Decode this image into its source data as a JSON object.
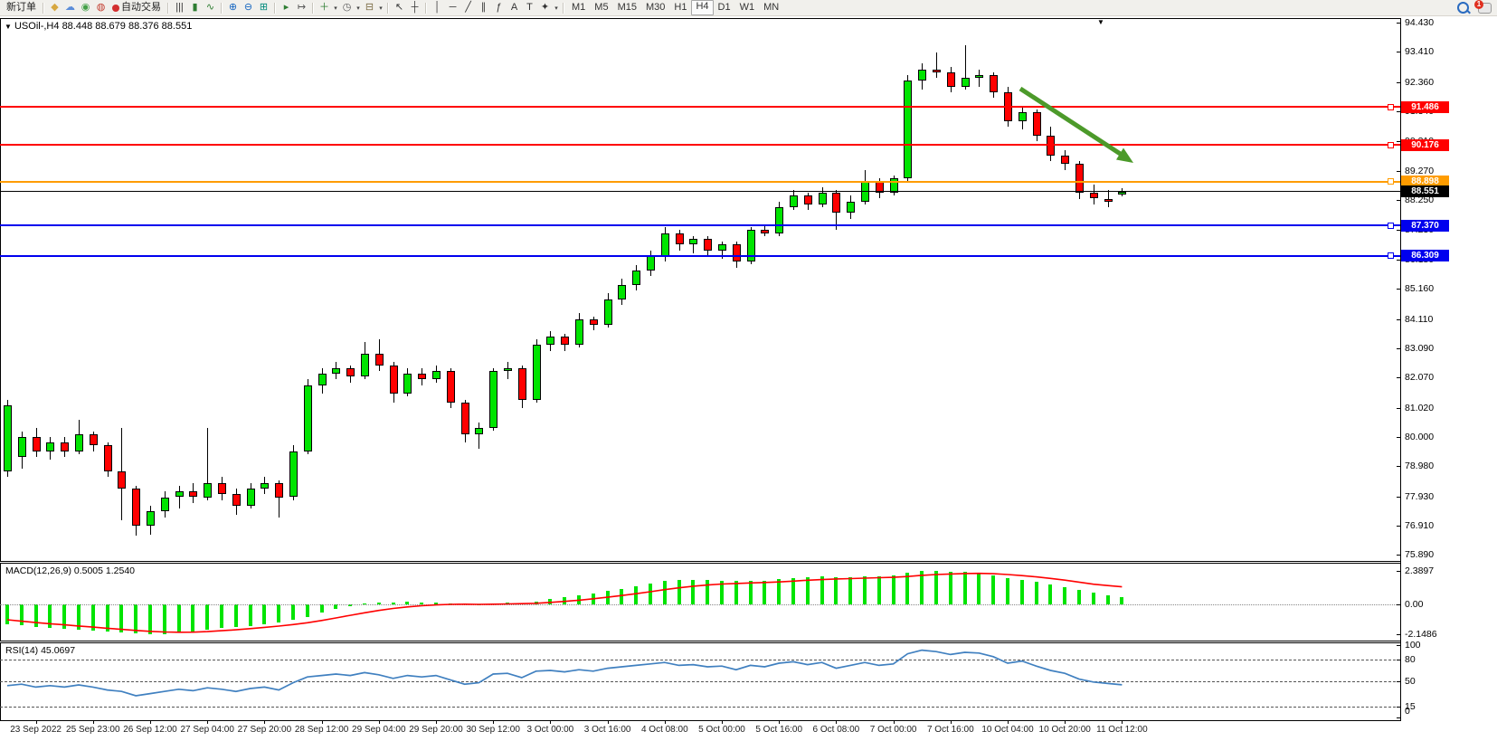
{
  "toolbar": {
    "new_order_label": "新订单",
    "auto_trading_label": "自动交易",
    "timeframes": [
      "M1",
      "M5",
      "M15",
      "M30",
      "H1",
      "H4",
      "D1",
      "W1",
      "MN"
    ],
    "active_timeframe": "H4",
    "notification_badge": "1",
    "items": [
      {
        "t": "btn",
        "name": "new-order-button",
        "label": "新订单"
      },
      {
        "t": "sep"
      },
      {
        "t": "icon",
        "name": "market-watch-icon",
        "g": "◆",
        "c": "#D7A73F"
      },
      {
        "t": "icon",
        "name": "chart-window-icon",
        "g": "☁",
        "c": "#5B8DD9"
      },
      {
        "t": "icon",
        "name": "signal-icon",
        "g": "◉",
        "c": "#43A047"
      },
      {
        "t": "icon",
        "name": "globe-icon",
        "g": "◍",
        "c": "#C23B2E"
      },
      {
        "t": "btn2",
        "name": "auto-trading-button",
        "label": "自动交易",
        "dot": "#D32F2F"
      },
      {
        "t": "sep"
      },
      {
        "t": "icon",
        "name": "bar-chart-icon",
        "g": "|||",
        "c": "#333333"
      },
      {
        "t": "icon",
        "name": "candlestick-icon",
        "g": "▮",
        "c": "#2E7D32"
      },
      {
        "t": "icon",
        "name": "line-chart-icon",
        "g": "∿",
        "c": "#2E7D32"
      },
      {
        "t": "sep"
      },
      {
        "t": "icon",
        "name": "zoom-in-icon",
        "g": "⊕",
        "c": "#1565C0"
      },
      {
        "t": "icon",
        "name": "zoom-out-icon",
        "g": "⊖",
        "c": "#1565C0"
      },
      {
        "t": "icon",
        "name": "tile-windows-icon",
        "g": "⊞",
        "c": "#00897B"
      },
      {
        "t": "sep"
      },
      {
        "t": "icon",
        "name": "auto-scroll-icon",
        "g": "▸",
        "c": "#2E7D32"
      },
      {
        "t": "icon",
        "name": "chart-shift-icon",
        "g": "↦",
        "c": "#555555"
      },
      {
        "t": "sep"
      },
      {
        "t": "icon",
        "name": "add-indicator-icon",
        "g": "＋",
        "c": "#2E7D32"
      },
      {
        "t": "caret"
      },
      {
        "t": "icon",
        "name": "period-clock-icon",
        "g": "◷",
        "c": "#555555"
      },
      {
        "t": "caret"
      },
      {
        "t": "icon",
        "name": "template-icon",
        "g": "⊟",
        "c": "#7B6B43"
      },
      {
        "t": "caret"
      },
      {
        "t": "sep"
      },
      {
        "t": "icon",
        "name": "cursor-icon",
        "g": "↖",
        "c": "#333333"
      },
      {
        "t": "icon",
        "name": "crosshair-icon",
        "g": "┼",
        "c": "#333333"
      },
      {
        "t": "sep"
      },
      {
        "t": "icon",
        "name": "vertical-line-icon",
        "g": "│",
        "c": "#333333"
      },
      {
        "t": "icon",
        "name": "horizontal-line-icon",
        "g": "─",
        "c": "#333333"
      },
      {
        "t": "icon",
        "name": "trendline-icon",
        "g": "╱",
        "c": "#333333"
      },
      {
        "t": "icon",
        "name": "equidistant-channel-icon",
        "g": "∥",
        "c": "#333333"
      },
      {
        "t": "icon",
        "name": "fibonacci-icon",
        "g": "ƒ",
        "c": "#333333"
      },
      {
        "t": "icon",
        "name": "text-icon",
        "g": "A",
        "c": "#333333"
      },
      {
        "t": "icon",
        "name": "label-icon",
        "g": "T",
        "c": "#333333"
      },
      {
        "t": "icon",
        "name": "shapes-icon",
        "g": "✦",
        "c": "#333333"
      },
      {
        "t": "caret"
      },
      {
        "t": "sep"
      }
    ]
  },
  "chart": {
    "title_symbol": "USOil-,H4",
    "title_ohlc": "88.448 88.679 88.376 88.551",
    "collapse_icon": "▼"
  },
  "indicators": {
    "macd_label": "MACD(12,26,9) 0.5005 1.2540",
    "rsi_label": "RSI(14) 45.0697"
  },
  "chart_data": {
    "type": "candlestick",
    "symbol": "USOil-",
    "timeframe": "H4",
    "current_bar": {
      "open": 88.448,
      "high": 88.679,
      "low": 88.376,
      "close": 88.551
    },
    "ylim": [
      75.89,
      94.43
    ],
    "colors": {
      "bull": "#00E400",
      "bear": "#FF0000",
      "wick": "#000000",
      "macd_histogram": "#00E400",
      "macd_signal": "#FF0000",
      "rsi_line": "#4080C0",
      "arrow": "#4C9A2A",
      "line_red": "#FF0000",
      "line_orange": "#FF9C00",
      "line_blue": "#0000EE",
      "line_black": "#000000"
    },
    "y_axis": {
      "ticks": [
        "94.430",
        "93.410",
        "92.360",
        "91.340",
        "90.310",
        "89.270",
        "88.250",
        "87.230",
        "86.180",
        "85.160",
        "84.110",
        "83.090",
        "82.070",
        "81.020",
        "80.000",
        "78.980",
        "77.930",
        "76.910",
        "75.890"
      ]
    },
    "lines": [
      {
        "price": 91.486,
        "label": "91.486",
        "color": "#FF0000",
        "width": 2,
        "marker": true
      },
      {
        "price": 90.176,
        "label": "90.176",
        "color": "#FF0000",
        "width": 2,
        "marker": true
      },
      {
        "price": 88.898,
        "label": "88.898",
        "color": "#FF9C00",
        "width": 2,
        "marker": true
      },
      {
        "price": 88.551,
        "label": "88.551",
        "color": "#000000",
        "width": 1,
        "marker": false
      },
      {
        "price": 87.37,
        "label": "87.370",
        "color": "#0000EE",
        "width": 2,
        "marker": true
      },
      {
        "price": 86.309,
        "label": "86.309",
        "color": "#0000EE",
        "width": 2,
        "marker": true
      }
    ],
    "x_labels": [
      "23 Sep 2022",
      "25 Sep 23:00",
      "26 Sep 12:00",
      "27 Sep 04:00",
      "27 Sep 20:00",
      "28 Sep 12:00",
      "29 Sep 04:00",
      "29 Sep 20:00",
      "30 Sep 12:00",
      "3 Oct 00:00",
      "3 Oct 16:00",
      "4 Oct 08:00",
      "5 Oct 00:00",
      "5 Oct 16:00",
      "6 Oct 08:00",
      "7 Oct 00:00",
      "7 Oct 16:00",
      "10 Oct 04:00",
      "10 Oct 20:00",
      "11 Oct 12:00"
    ],
    "bars": [
      [
        78.8,
        81.3,
        78.6,
        81.1
      ],
      [
        79.3,
        80.2,
        78.9,
        80.0
      ],
      [
        80.0,
        80.3,
        79.3,
        79.5
      ],
      [
        79.5,
        80.0,
        79.2,
        79.8
      ],
      [
        79.8,
        80.0,
        79.3,
        79.5
      ],
      [
        79.5,
        80.6,
        79.4,
        80.1
      ],
      [
        80.1,
        80.2,
        79.5,
        79.7
      ],
      [
        79.7,
        79.8,
        78.6,
        78.8
      ],
      [
        78.8,
        80.3,
        77.1,
        78.2
      ],
      [
        78.2,
        78.3,
        76.55,
        76.9
      ],
      [
        76.9,
        77.6,
        76.6,
        77.4
      ],
      [
        77.4,
        78.1,
        77.2,
        77.9
      ],
      [
        77.9,
        78.3,
        77.5,
        78.1
      ],
      [
        78.1,
        78.4,
        77.7,
        77.9
      ],
      [
        77.9,
        80.3,
        77.8,
        78.4
      ],
      [
        78.4,
        78.6,
        77.8,
        78.0
      ],
      [
        78.0,
        78.2,
        77.3,
        77.6
      ],
      [
        77.6,
        78.4,
        77.5,
        78.2
      ],
      [
        78.2,
        78.6,
        78.0,
        78.4
      ],
      [
        78.4,
        78.5,
        77.2,
        77.9
      ],
      [
        77.9,
        79.7,
        77.8,
        79.5
      ],
      [
        79.5,
        82.0,
        79.4,
        81.8
      ],
      [
        81.8,
        82.4,
        81.5,
        82.2
      ],
      [
        82.2,
        82.6,
        82.0,
        82.4
      ],
      [
        82.4,
        82.5,
        81.9,
        82.1
      ],
      [
        82.1,
        83.3,
        82.0,
        82.9
      ],
      [
        82.9,
        83.4,
        82.3,
        82.5
      ],
      [
        82.5,
        82.6,
        81.2,
        81.5
      ],
      [
        81.5,
        82.4,
        81.4,
        82.2
      ],
      [
        82.2,
        82.4,
        81.8,
        82.0
      ],
      [
        82.0,
        82.5,
        81.9,
        82.3
      ],
      [
        82.3,
        82.4,
        81.0,
        81.2
      ],
      [
        81.2,
        81.3,
        79.8,
        80.1
      ],
      [
        80.1,
        80.5,
        79.6,
        80.3
      ],
      [
        80.3,
        82.4,
        80.2,
        82.3
      ],
      [
        82.3,
        82.6,
        82.0,
        82.4
      ],
      [
        82.4,
        82.5,
        81.0,
        81.3
      ],
      [
        81.3,
        83.4,
        81.2,
        83.2
      ],
      [
        83.2,
        83.7,
        83.0,
        83.5
      ],
      [
        83.5,
        83.6,
        83.0,
        83.2
      ],
      [
        83.2,
        84.3,
        83.1,
        84.1
      ],
      [
        84.1,
        84.2,
        83.7,
        83.9
      ],
      [
        83.9,
        85.0,
        83.8,
        84.8
      ],
      [
        84.8,
        85.5,
        84.6,
        85.3
      ],
      [
        85.3,
        86.0,
        85.1,
        85.8
      ],
      [
        85.8,
        86.5,
        85.6,
        86.3
      ],
      [
        86.3,
        87.3,
        86.1,
        87.1
      ],
      [
        87.1,
        87.2,
        86.5,
        86.7
      ],
      [
        86.7,
        87.0,
        86.4,
        86.9
      ],
      [
        86.9,
        87.0,
        86.3,
        86.5
      ],
      [
        86.5,
        86.8,
        86.2,
        86.7
      ],
      [
        86.7,
        86.8,
        85.9,
        86.1
      ],
      [
        86.1,
        87.3,
        86.0,
        87.2
      ],
      [
        87.2,
        87.4,
        87.0,
        87.1
      ],
      [
        87.1,
        88.2,
        87.0,
        88.0
      ],
      [
        88.0,
        88.6,
        87.9,
        88.4
      ],
      [
        88.4,
        88.5,
        87.9,
        88.1
      ],
      [
        88.1,
        88.7,
        88.0,
        88.5
      ],
      [
        88.5,
        88.6,
        87.2,
        87.8
      ],
      [
        87.8,
        88.4,
        87.6,
        88.2
      ],
      [
        88.2,
        89.3,
        88.1,
        88.9
      ],
      [
        88.9,
        89.0,
        88.3,
        88.5
      ],
      [
        88.5,
        89.1,
        88.4,
        89.0
      ],
      [
        89.0,
        92.6,
        88.9,
        92.4
      ],
      [
        92.4,
        93.0,
        92.1,
        92.8
      ],
      [
        92.8,
        93.4,
        92.5,
        92.7
      ],
      [
        92.7,
        92.9,
        92.0,
        92.2
      ],
      [
        92.2,
        93.64,
        92.1,
        92.5
      ],
      [
        92.5,
        92.8,
        92.2,
        92.6
      ],
      [
        92.6,
        92.7,
        91.8,
        92.0
      ],
      [
        92.0,
        92.2,
        90.8,
        91.0
      ],
      [
        91.0,
        91.5,
        90.7,
        91.3
      ],
      [
        91.3,
        91.4,
        90.3,
        90.5
      ],
      [
        90.5,
        90.8,
        89.6,
        89.8
      ],
      [
        89.8,
        90.0,
        89.3,
        89.5
      ],
      [
        89.5,
        89.6,
        88.3,
        88.5
      ],
      [
        88.5,
        88.8,
        88.1,
        88.3
      ],
      [
        88.3,
        88.6,
        88.0,
        88.2
      ],
      [
        88.448,
        88.679,
        88.376,
        88.551
      ]
    ],
    "macd": {
      "name": "MACD(12,26,9)",
      "value": 0.5005,
      "signal_value": 1.254,
      "axis_labels": [
        "2.3897",
        "0.00",
        "-2.1486"
      ],
      "values": [
        -1.4,
        -1.5,
        -1.58,
        -1.65,
        -1.72,
        -1.78,
        -1.85,
        -1.92,
        -2.0,
        -2.08,
        -2.14,
        -2.1,
        -2.02,
        -1.92,
        -1.8,
        -1.7,
        -1.62,
        -1.52,
        -1.4,
        -1.3,
        -1.12,
        -0.88,
        -0.6,
        -0.35,
        -0.15,
        0.02,
        0.12,
        0.15,
        0.18,
        0.16,
        0.14,
        0.08,
        0.0,
        -0.04,
        0.06,
        0.12,
        0.1,
        0.22,
        0.38,
        0.5,
        0.66,
        0.78,
        0.95,
        1.12,
        1.3,
        1.48,
        1.65,
        1.72,
        1.75,
        1.72,
        1.7,
        1.65,
        1.68,
        1.7,
        1.78,
        1.88,
        1.95,
        2.0,
        1.96,
        1.94,
        2.0,
        2.02,
        2.05,
        2.25,
        2.39,
        2.38,
        2.3,
        2.32,
        2.25,
        2.1,
        1.9,
        1.75,
        1.6,
        1.42,
        1.25,
        1.05,
        0.85,
        0.68,
        0.5
      ],
      "signal": [
        -1.1,
        -1.2,
        -1.3,
        -1.38,
        -1.46,
        -1.54,
        -1.62,
        -1.7,
        -1.78,
        -1.86,
        -1.92,
        -1.97,
        -1.99,
        -1.98,
        -1.94,
        -1.88,
        -1.81,
        -1.73,
        -1.64,
        -1.55,
        -1.44,
        -1.31,
        -1.15,
        -0.97,
        -0.78,
        -0.6,
        -0.43,
        -0.29,
        -0.18,
        -0.1,
        -0.04,
        0.0,
        0.01,
        0.0,
        0.01,
        0.03,
        0.05,
        0.08,
        0.14,
        0.21,
        0.3,
        0.4,
        0.51,
        0.63,
        0.76,
        0.9,
        1.05,
        1.18,
        1.3,
        1.38,
        1.45,
        1.49,
        1.53,
        1.56,
        1.6,
        1.66,
        1.72,
        1.77,
        1.81,
        1.84,
        1.87,
        1.9,
        1.93,
        1.99,
        2.07,
        2.13,
        2.17,
        2.2,
        2.21,
        2.19,
        2.13,
        2.05,
        1.96,
        1.85,
        1.73,
        1.59,
        1.44,
        1.34,
        1.254
      ]
    },
    "rsi": {
      "name": "RSI(14)",
      "value": 45.0697,
      "axis_labels": [
        "100",
        "80",
        "50",
        "15",
        "0"
      ],
      "level_lines": [
        80,
        50,
        15
      ],
      "values": [
        44,
        46,
        42,
        44,
        42,
        45,
        42,
        38,
        36,
        30,
        33,
        36,
        39,
        37,
        41,
        39,
        36,
        40,
        42,
        38,
        48,
        56,
        58,
        60,
        58,
        62,
        59,
        54,
        58,
        56,
        58,
        52,
        46,
        48,
        60,
        61,
        55,
        64,
        65,
        63,
        66,
        64,
        68,
        70,
        72,
        74,
        76,
        72,
        73,
        70,
        71,
        66,
        72,
        70,
        75,
        77,
        73,
        76,
        68,
        72,
        76,
        72,
        74,
        88,
        93,
        91,
        87,
        90,
        89,
        84,
        75,
        78,
        71,
        65,
        61,
        53,
        49,
        47,
        45.07
      ]
    },
    "arrow": {
      "from": [
        1128,
        98
      ],
      "to": [
        1253,
        180
      ],
      "color": "#4C9A2A"
    }
  }
}
